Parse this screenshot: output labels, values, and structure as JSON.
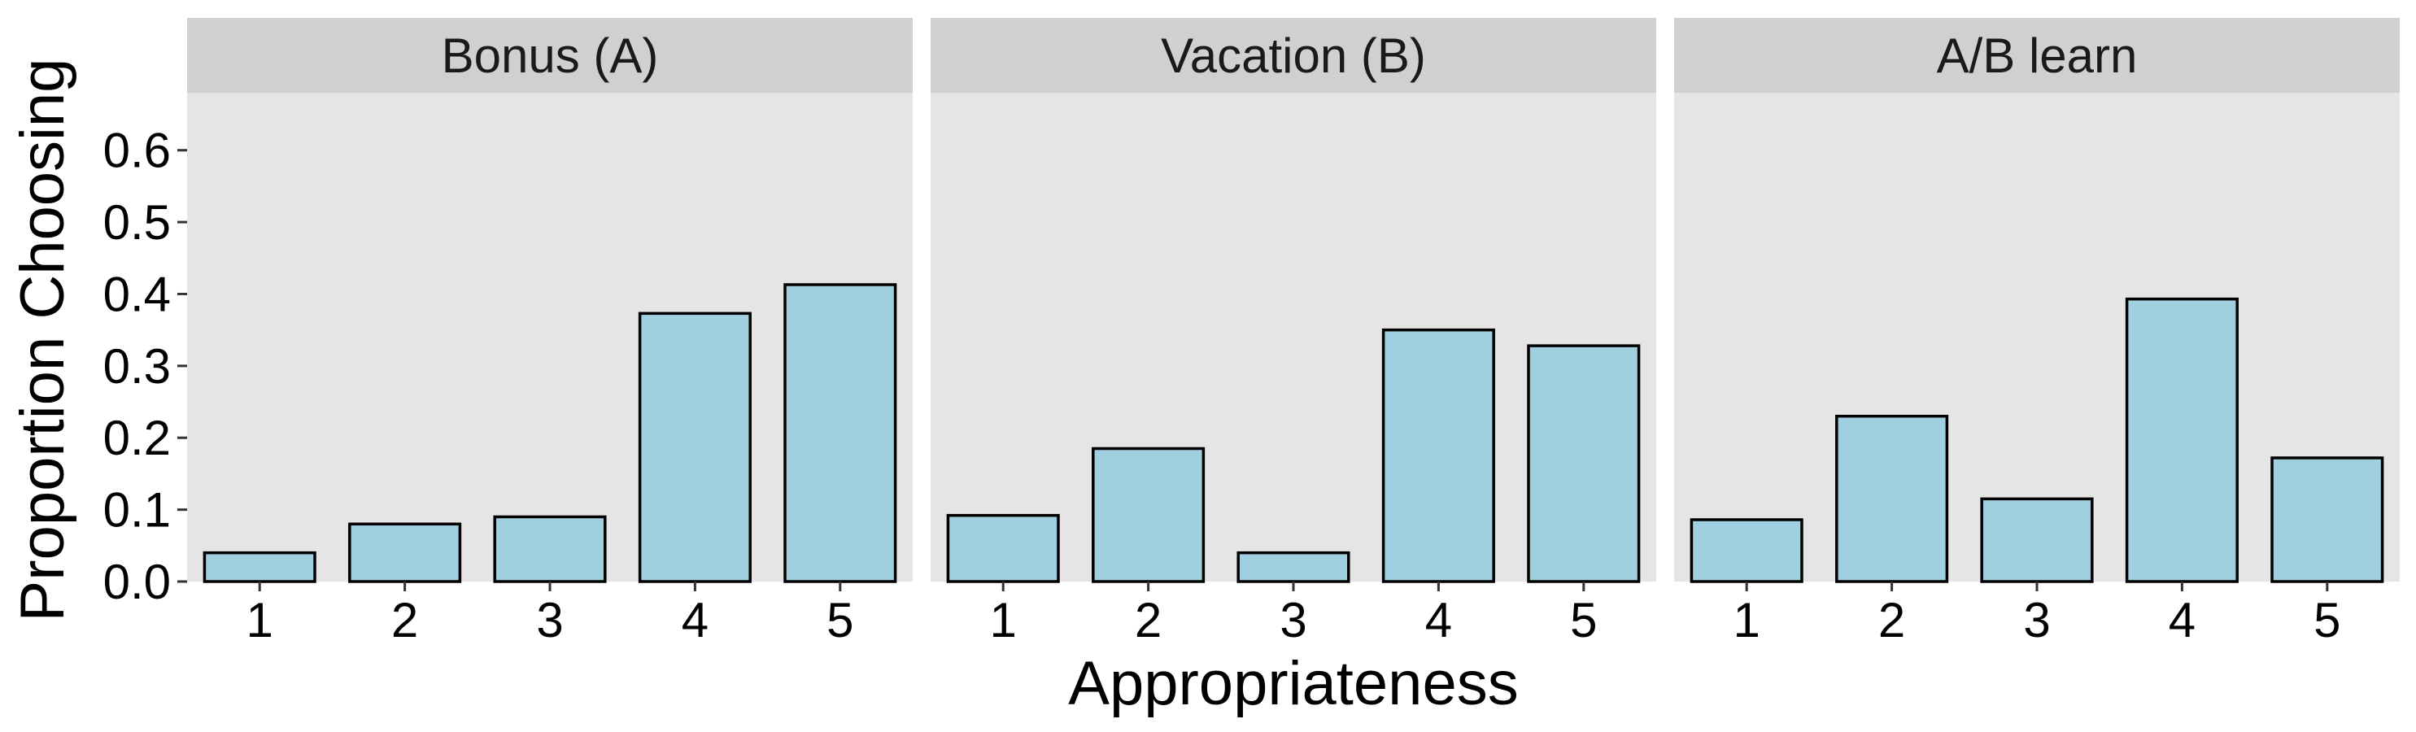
{
  "chart_data": {
    "type": "bar",
    "xlabel": "Appropriateness",
    "ylabel": "Proportion Choosing",
    "ylim": [
      0,
      0.68
    ],
    "yticks": [
      "0.0",
      "0.1",
      "0.2",
      "0.3",
      "0.4",
      "0.5",
      "0.6"
    ],
    "categories": [
      "1",
      "2",
      "3",
      "4",
      "5"
    ],
    "grid": false,
    "colors": {
      "bar_fill": "#a0cfe0",
      "bar_stroke": "#000000",
      "panel_bg": "#e5e5e5",
      "strip_bg": "#d0d0d0"
    },
    "facets": [
      {
        "label": "Bonus (A)",
        "values": [
          0.04,
          0.08,
          0.09,
          0.373,
          0.413
        ]
      },
      {
        "label": "Vacation (B)",
        "values": [
          0.092,
          0.185,
          0.04,
          0.35,
          0.328
        ]
      },
      {
        "label": "A/B learn",
        "values": [
          0.086,
          0.23,
          0.115,
          0.393,
          0.172
        ]
      }
    ]
  }
}
